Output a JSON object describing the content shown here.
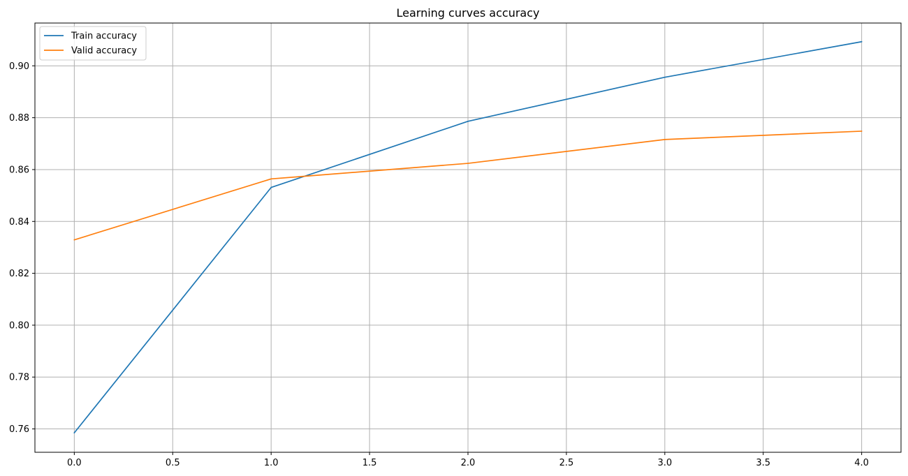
{
  "chart_data": {
    "type": "line",
    "title": "Learning curves accuracy",
    "xlabel": "",
    "ylabel": "",
    "x": [
      0,
      1,
      2,
      3,
      4
    ],
    "xlim": [
      -0.2,
      4.2
    ],
    "ylim": [
      0.751,
      0.9165
    ],
    "xticks": [
      "0.0",
      "0.5",
      "1.0",
      "1.5",
      "2.0",
      "2.5",
      "3.0",
      "3.5",
      "4.0"
    ],
    "yticks": [
      "0.76",
      "0.78",
      "0.80",
      "0.82",
      "0.84",
      "0.86",
      "0.88",
      "0.90"
    ],
    "grid": true,
    "legend_position": "top-left",
    "series": [
      {
        "name": "Train accuracy",
        "color": "#1f77b4",
        "values": [
          0.7585,
          0.8531,
          0.8786,
          0.8956,
          0.9093
        ]
      },
      {
        "name": "Valid accuracy",
        "color": "#ff7f0e",
        "values": [
          0.8329,
          0.8564,
          0.8624,
          0.8716,
          0.8748
        ]
      }
    ]
  }
}
